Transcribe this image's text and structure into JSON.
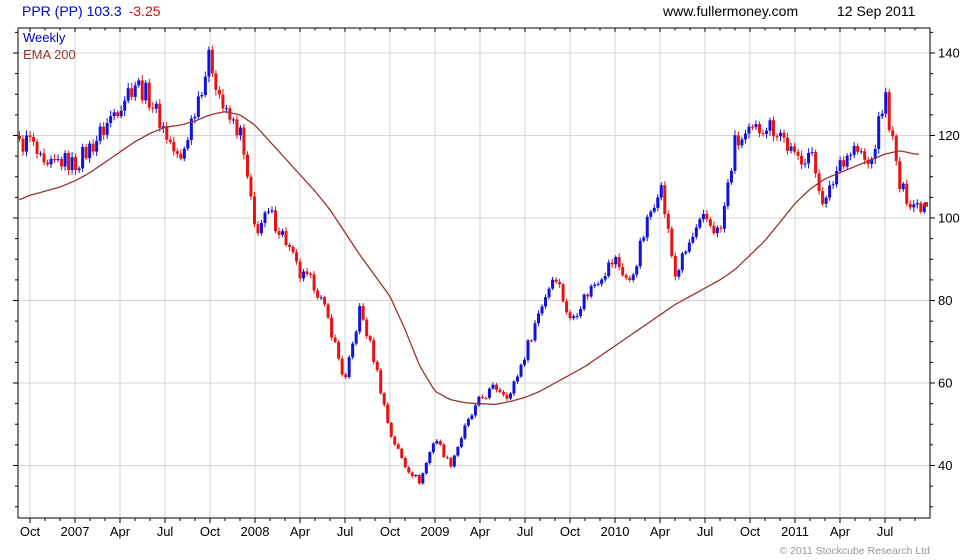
{
  "header": {
    "symbol_quote": "PPR (PP) 103.3",
    "change": "-3.25",
    "website": "www.fullermoney.com",
    "date": "12 Sep 2011"
  },
  "legend": {
    "series1": "Weekly",
    "series2": "EMA 200"
  },
  "footer": {
    "copyright": "© 2011 Stockcube Research Ltd"
  },
  "colors": {
    "up_candle": "#1212d8",
    "down_candle": "#e81212",
    "ema_line": "#993333",
    "grid": "#d4d4d4",
    "frame": "#000000",
    "header_blue": "#0000cc",
    "change_red": "#cc1111",
    "copyright_gray": "#979797"
  },
  "chart_data": {
    "type": "candlestick",
    "title": "PPR (PP) weekly candlestick chart with EMA 200 overlay",
    "x_axis": {
      "tick_labels": [
        "Oct",
        "2007",
        "Apr",
        "Jul",
        "Oct",
        "2008",
        "Apr",
        "Jul",
        "Oct",
        "2009",
        "Apr",
        "Jul",
        "Oct",
        "2010",
        "Apr",
        "Jul",
        "Oct",
        "2011",
        "Apr",
        "Jul"
      ],
      "first_anchor": "2006-09",
      "last_anchor": "2011-09",
      "anchor_step": "1 month",
      "bar_interval": "weekly"
    },
    "y_axis": {
      "ticks": [
        40,
        60,
        80,
        100,
        120,
        140
      ],
      "minor_step": 5,
      "visible_range": [
        27,
        146
      ],
      "side": "right"
    },
    "series": [
      {
        "name": "Weekly",
        "style": "candlestick",
        "monthly_close_anchors": [
          117,
          119,
          111,
          114,
          113,
          117,
          122,
          128,
          133,
          129,
          121,
          113,
          127,
          139,
          125,
          121,
          97,
          101,
          95,
          86,
          84,
          74,
          60,
          78,
          65,
          48,
          40,
          36,
          47,
          40,
          49,
          56,
          59,
          57,
          67,
          78,
          87,
          75,
          81,
          86,
          90,
          84,
          97,
          109,
          86,
          94,
          100,
          96,
          118,
          120,
          123,
          121,
          114,
          116,
          103,
          114,
          117,
          112,
          130,
          107,
          103.3
        ]
      },
      {
        "name": "EMA 200",
        "style": "line",
        "monthly_values": [
          104,
          105.5,
          106.5,
          107.5,
          109,
          111,
          113.5,
          116,
          118.5,
          120.5,
          122,
          122.5,
          123.5,
          125,
          125.8,
          125,
          122.5,
          118.5,
          114.5,
          110.5,
          106.5,
          102,
          96.5,
          91,
          86,
          81,
          73,
          64,
          58,
          56,
          55.2,
          55,
          54.8,
          55.5,
          56.5,
          58,
          60,
          62,
          64,
          66.5,
          69,
          71.5,
          74,
          76.5,
          79,
          81,
          83,
          85,
          87.5,
          91,
          94.5,
          99,
          103.5,
          107,
          109.5,
          111,
          112.5,
          114,
          115.5,
          116.3,
          115.5
        ]
      }
    ],
    "extremes": {
      "peak_high": 142,
      "peak_at": "Oct 2007",
      "trough_low": 32,
      "trough_at": "Nov–Dec 2008",
      "rally_high_2011": 132,
      "last_close": 103.3
    }
  }
}
